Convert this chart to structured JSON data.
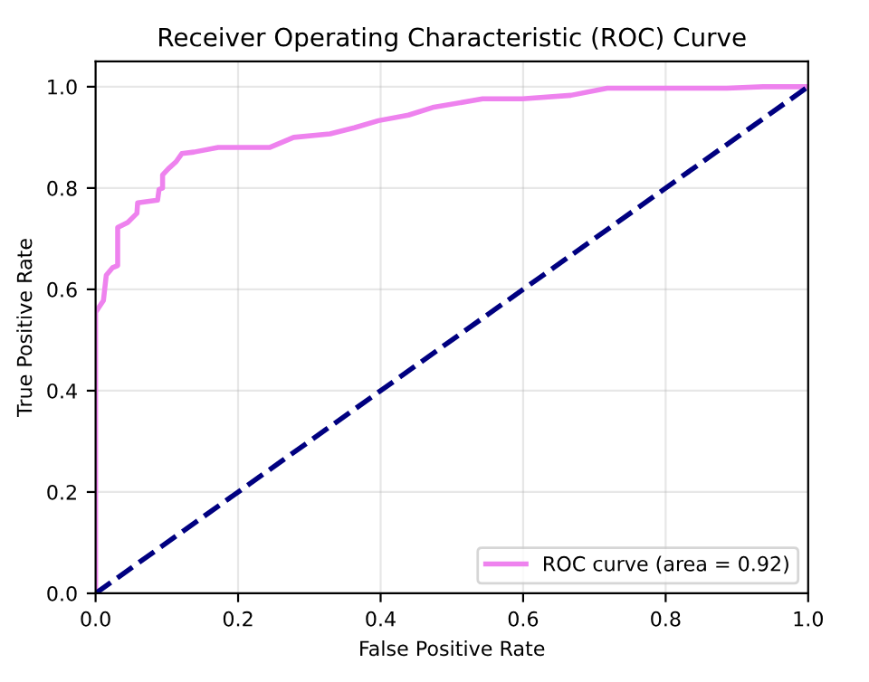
{
  "chart_data": {
    "type": "line",
    "title": "Receiver Operating Characteristic (ROC) Curve",
    "xlabel": "False Positive Rate",
    "ylabel": "True Positive Rate",
    "series": [
      {
        "name": "ROC curve (area = 0.92)",
        "color": "#ee82ee",
        "line_style": "solid",
        "x": [
          0,
          0,
          0.011,
          0.015,
          0.024,
          0.031,
          0.031,
          0.045,
          0.058,
          0.059,
          0.087,
          0.089,
          0.094,
          0.094,
          0.102,
          0.113,
          0.121,
          0.138,
          0.172,
          0.244,
          0.278,
          0.329,
          0.363,
          0.397,
          0.439,
          0.473,
          0.543,
          0.599,
          0.667,
          0.718,
          0.886,
          0.937,
          1.0
        ],
        "values": [
          0,
          0.555,
          0.578,
          0.628,
          0.643,
          0.647,
          0.722,
          0.732,
          0.75,
          0.771,
          0.776,
          0.797,
          0.8,
          0.826,
          0.838,
          0.852,
          0.868,
          0.871,
          0.88,
          0.88,
          0.9,
          0.907,
          0.919,
          0.933,
          0.944,
          0.959,
          0.976,
          0.976,
          0.983,
          0.997,
          0.997,
          1.0,
          1.0
        ]
      },
      {
        "color": "#000080",
        "line_style": "dashed",
        "x": [
          0,
          1
        ],
        "values": [
          0,
          1
        ]
      }
    ],
    "xlim": [
      0,
      1
    ],
    "ylim": [
      0,
      1.05
    ],
    "xticks": [
      {
        "value": 0,
        "label": "0.0"
      },
      0.2,
      0.4,
      0.6,
      0.8,
      {
        "value": 1,
        "label": "1.0"
      }
    ],
    "yticks": [
      {
        "value": 0,
        "label": "0.0"
      },
      0.2,
      0.4,
      0.6,
      0.8,
      {
        "value": 1,
        "label": "1.0"
      }
    ],
    "grid": true,
    "legend": "lower right"
  }
}
